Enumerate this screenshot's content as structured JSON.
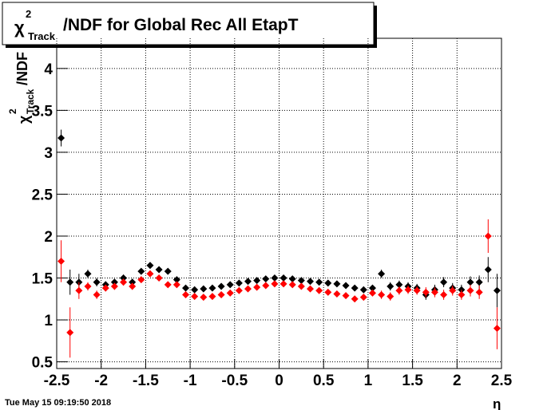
{
  "chart_data": {
    "type": "scatter",
    "title": {
      "symbol": "χ",
      "sup": "2",
      "sub": "Track",
      "rest": "/NDF for Global Rec All EtapT"
    },
    "y_label": {
      "symbol": "χ",
      "sup": "2",
      "sub": "Track",
      "rest": "/NDF"
    },
    "x_label": "η",
    "timestamp": "Tue May 15 09:19:50 2018",
    "xlim": [
      -2.5,
      2.5
    ],
    "ylim": [
      0.42,
      4.36
    ],
    "xticks": [
      -2.5,
      -2,
      -1.5,
      -1,
      -0.5,
      0,
      0.5,
      1,
      1.5,
      2,
      2.5
    ],
    "yticks": [
      0.5,
      1,
      1.5,
      2,
      2.5,
      3,
      3.5,
      4
    ],
    "grid": true,
    "x": [
      -2.45,
      -2.35,
      -2.25,
      -2.15,
      -2.05,
      -1.95,
      -1.85,
      -1.75,
      -1.65,
      -1.55,
      -1.45,
      -1.35,
      -1.25,
      -1.15,
      -1.05,
      -0.95,
      -0.85,
      -0.75,
      -0.65,
      -0.55,
      -0.45,
      -0.35,
      -0.25,
      -0.15,
      -0.05,
      0.05,
      0.15,
      0.25,
      0.35,
      0.45,
      0.55,
      0.65,
      0.75,
      0.85,
      0.95,
      1.05,
      1.15,
      1.25,
      1.35,
      1.45,
      1.55,
      1.65,
      1.75,
      1.85,
      1.95,
      2.05,
      2.15,
      2.25,
      2.35,
      2.45
    ],
    "series": [
      {
        "name": "black",
        "color": "#000000",
        "values": [
          3.17,
          1.45,
          1.45,
          1.55,
          1.45,
          1.42,
          1.45,
          1.5,
          1.45,
          1.58,
          1.65,
          1.6,
          1.58,
          1.48,
          1.38,
          1.36,
          1.37,
          1.38,
          1.4,
          1.42,
          1.44,
          1.46,
          1.47,
          1.49,
          1.5,
          1.5,
          1.49,
          1.47,
          1.46,
          1.45,
          1.44,
          1.43,
          1.41,
          1.38,
          1.36,
          1.38,
          1.55,
          1.4,
          1.42,
          1.4,
          1.38,
          1.3,
          1.36,
          1.45,
          1.38,
          1.36,
          1.45,
          1.45,
          1.6,
          1.35
        ],
        "errors": [
          0.1,
          0.15,
          0.1,
          0.05,
          0.05,
          0.04,
          0.04,
          0.04,
          0.04,
          0.03,
          0.03,
          0.03,
          0.03,
          0.03,
          0.02,
          0.02,
          0.02,
          0.02,
          0.02,
          0.02,
          0.02,
          0.02,
          0.02,
          0.02,
          0.02,
          0.02,
          0.02,
          0.02,
          0.02,
          0.02,
          0.02,
          0.02,
          0.02,
          0.02,
          0.02,
          0.03,
          0.05,
          0.05,
          0.05,
          0.05,
          0.05,
          0.06,
          0.06,
          0.06,
          0.06,
          0.06,
          0.07,
          0.08,
          0.15,
          0.2
        ]
      },
      {
        "name": "red",
        "color": "#ff0000",
        "values": [
          1.7,
          0.85,
          1.35,
          1.4,
          1.3,
          1.38,
          1.4,
          1.45,
          1.4,
          1.48,
          1.55,
          1.5,
          1.42,
          1.42,
          1.3,
          1.28,
          1.27,
          1.28,
          1.3,
          1.32,
          1.35,
          1.37,
          1.39,
          1.41,
          1.43,
          1.43,
          1.42,
          1.4,
          1.37,
          1.35,
          1.33,
          1.31,
          1.29,
          1.25,
          1.27,
          1.32,
          1.3,
          1.28,
          1.35,
          1.36,
          1.35,
          1.33,
          1.33,
          1.3,
          1.35,
          1.3,
          1.35,
          1.33,
          2.0,
          0.9
        ],
        "errors": [
          0.25,
          0.3,
          0.1,
          0.05,
          0.05,
          0.04,
          0.04,
          0.04,
          0.04,
          0.03,
          0.03,
          0.03,
          0.03,
          0.03,
          0.02,
          0.02,
          0.02,
          0.02,
          0.02,
          0.02,
          0.02,
          0.02,
          0.02,
          0.02,
          0.02,
          0.02,
          0.02,
          0.02,
          0.02,
          0.02,
          0.02,
          0.02,
          0.02,
          0.02,
          0.02,
          0.03,
          0.05,
          0.05,
          0.05,
          0.05,
          0.05,
          0.06,
          0.06,
          0.06,
          0.06,
          0.06,
          0.07,
          0.08,
          0.2,
          0.25
        ]
      }
    ]
  }
}
